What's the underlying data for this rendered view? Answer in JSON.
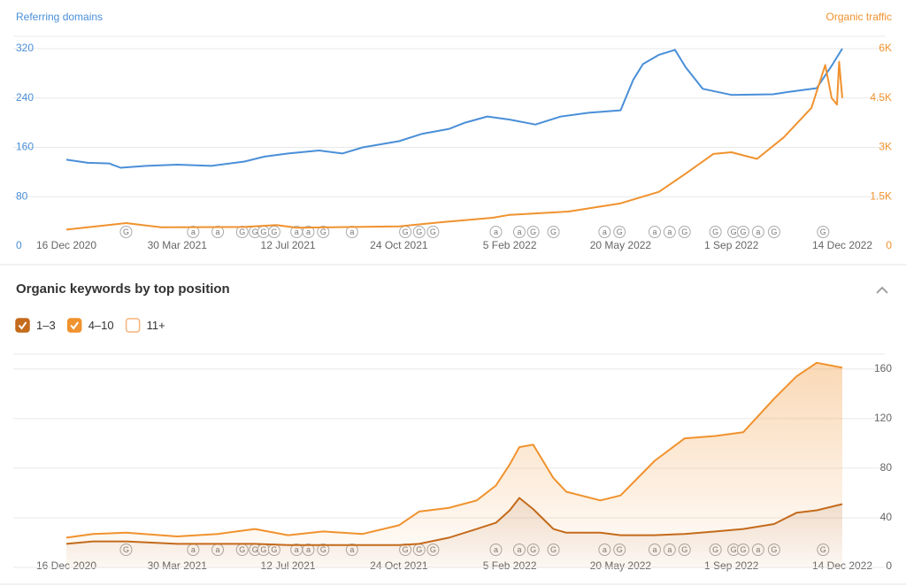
{
  "chart_data": [
    {
      "type": "line",
      "y_label": "Referring domains",
      "y2_label": "Organic traffic",
      "xlim": [
        "2020-12-16",
        "2022-12-14"
      ],
      "xticks": [
        {
          "value": "2020-12-16",
          "label": "16 Dec 2020"
        },
        {
          "value": "2021-03-30",
          "label": "30 Mar 2021"
        },
        {
          "value": "2021-07-12",
          "label": "12 Jul 2021"
        },
        {
          "value": "2021-10-24",
          "label": "24 Oct 2021"
        },
        {
          "value": "2022-02-05",
          "label": "5 Feb 2022"
        },
        {
          "value": "2022-05-20",
          "label": "20 May 2022"
        },
        {
          "value": "2022-09-01",
          "label": "1 Sep 2022"
        },
        {
          "value": "2022-12-14",
          "label": "14 Dec 2022"
        }
      ],
      "ylim": [
        0,
        340
      ],
      "yticks": [
        0,
        80,
        160,
        240,
        320
      ],
      "y2lim": [
        0,
        6375
      ],
      "y2ticks": [
        0,
        {
          "value": 1500,
          "label": "1.5K"
        },
        {
          "value": 3000,
          "label": "3K"
        },
        {
          "value": 4500,
          "label": "4.5K"
        },
        {
          "value": 6000,
          "label": "6K"
        }
      ],
      "grid": true,
      "series": [
        {
          "color": "#4a8fd8",
          "x": [
            "2020-12-16",
            "2021-01-05",
            "2021-01-25",
            "2021-02-05",
            "2021-03-01",
            "2021-03-30",
            "2021-05-01",
            "2021-06-01",
            "2021-06-20",
            "2021-07-12",
            "2021-08-10",
            "2021-09-01",
            "2021-09-20",
            "2021-10-24",
            "2021-11-15",
            "2021-12-10",
            "2021-12-25",
            "2022-01-15",
            "2022-02-05",
            "2022-03-01",
            "2022-03-25",
            "2022-04-20",
            "2022-05-20",
            "2022-06-01",
            "2022-06-10",
            "2022-06-25",
            "2022-07-10",
            "2022-07-20",
            "2022-08-05",
            "2022-09-01",
            "2022-10-10",
            "2022-10-25",
            "2022-11-20",
            "2022-12-05",
            "2022-12-14"
          ],
          "values": [
            140,
            135,
            134,
            127,
            130,
            132,
            130,
            137,
            145,
            150,
            155,
            150,
            160,
            170,
            182,
            190,
            200,
            210,
            205,
            197,
            210,
            216,
            220,
            270,
            295,
            310,
            318,
            290,
            255,
            245,
            246,
            250,
            256,
            295,
            320
          ]
        },
        {
          "color": "#f0922e",
          "axis": "y2",
          "x": [
            "2020-12-16",
            "2021-02-10",
            "2021-03-15",
            "2021-06-01",
            "2021-07-01",
            "2021-07-20",
            "2021-10-24",
            "2021-12-01",
            "2022-01-20",
            "2022-02-05",
            "2022-04-01",
            "2022-05-20",
            "2022-06-25",
            "2022-07-20",
            "2022-08-15",
            "2022-09-01",
            "2022-09-25",
            "2022-10-20",
            "2022-11-15",
            "2022-11-28",
            "2022-12-04",
            "2022-12-09",
            "2022-12-11",
            "2022-12-14"
          ],
          "values": [
            500,
            700,
            570,
            580,
            640,
            560,
            600,
            720,
            860,
            950,
            1050,
            1300,
            1650,
            2200,
            2800,
            2850,
            2650,
            3300,
            4200,
            5500,
            4500,
            4300,
            5600,
            4500
          ]
        }
      ]
    },
    {
      "type": "stacked-area",
      "title": "Organic keywords by top position",
      "legend": "top-left",
      "x": [
        "2020-12-16",
        "2021-01-10",
        "2021-02-10",
        "2021-03-30",
        "2021-05-07",
        "2021-06-11",
        "2021-07-12",
        "2021-08-14",
        "2021-09-20",
        "2021-10-24",
        "2021-11-12",
        "2021-12-10",
        "2022-01-05",
        "2022-01-23",
        "2022-02-05",
        "2022-02-14",
        "2022-02-27",
        "2022-03-18",
        "2022-03-30",
        "2022-05-01",
        "2022-05-20",
        "2022-06-21",
        "2022-07-19",
        "2022-08-17",
        "2022-09-12",
        "2022-10-11",
        "2022-11-01",
        "2022-11-20",
        "2022-12-14"
      ],
      "xlim": [
        "2020-12-16",
        "2022-12-14"
      ],
      "xticks": [
        {
          "value": "2020-12-16",
          "label": "16 Dec 2020"
        },
        {
          "value": "2021-03-30",
          "label": "30 Mar 2021"
        },
        {
          "value": "2021-07-12",
          "label": "12 Jul 2021"
        },
        {
          "value": "2021-10-24",
          "label": "24 Oct 2021"
        },
        {
          "value": "2022-02-05",
          "label": "5 Feb 2022"
        },
        {
          "value": "2022-05-20",
          "label": "20 May 2022"
        },
        {
          "value": "2022-09-01",
          "label": "1 Sep 2022"
        },
        {
          "value": "2022-12-14",
          "label": "14 Dec 2022"
        }
      ],
      "ylim": [
        0,
        172
      ],
      "yticks": [
        0,
        40,
        80,
        120,
        160
      ],
      "grid": true,
      "series": [
        {
          "name": "1–3",
          "color": "#c46b1c",
          "checked": true,
          "values": [
            19,
            21,
            21,
            19,
            19,
            19,
            18,
            18,
            18,
            18,
            19,
            24,
            31,
            36,
            46,
            56,
            47,
            31,
            28,
            28,
            26,
            26,
            27,
            29,
            31,
            35,
            44,
            46,
            51
          ]
        },
        {
          "name": "4–10",
          "color": "#f0922e",
          "checked": true,
          "values": [
            5,
            6,
            7,
            6,
            8,
            12,
            8,
            11,
            9,
            16,
            26,
            24,
            23,
            30,
            37,
            41,
            52,
            41,
            33,
            26,
            32,
            60,
            77,
            77,
            78,
            101,
            110,
            119,
            110
          ]
        },
        {
          "name": "11+",
          "color": "#f6b47c",
          "checked": false
        }
      ]
    }
  ],
  "events": [
    {
      "x": "2021-02-10",
      "label": "G"
    },
    {
      "x": "2021-04-14",
      "label": "a"
    },
    {
      "x": "2021-05-07",
      "label": "a"
    },
    {
      "x": "2021-05-30",
      "label": "G"
    },
    {
      "x": "2021-06-11",
      "label": "G"
    },
    {
      "x": "2021-06-19",
      "label": "G"
    },
    {
      "x": "2021-06-29",
      "label": "G"
    },
    {
      "x": "2021-07-20",
      "label": "a"
    },
    {
      "x": "2021-07-31",
      "label": "a"
    },
    {
      "x": "2021-08-14",
      "label": "G"
    },
    {
      "x": "2021-09-10",
      "label": "a"
    },
    {
      "x": "2021-10-30",
      "label": "G"
    },
    {
      "x": "2021-11-12",
      "label": "G"
    },
    {
      "x": "2021-11-25",
      "label": "G"
    },
    {
      "x": "2022-01-23",
      "label": "a"
    },
    {
      "x": "2022-02-14",
      "label": "a"
    },
    {
      "x": "2022-02-27",
      "label": "G"
    },
    {
      "x": "2022-03-18",
      "label": "G"
    },
    {
      "x": "2022-05-05",
      "label": "a"
    },
    {
      "x": "2022-05-19",
      "label": "G"
    },
    {
      "x": "2022-06-21",
      "label": "a"
    },
    {
      "x": "2022-07-05",
      "label": "a"
    },
    {
      "x": "2022-07-19",
      "label": "G"
    },
    {
      "x": "2022-08-17",
      "label": "G"
    },
    {
      "x": "2022-09-03",
      "label": "G"
    },
    {
      "x": "2022-09-12",
      "label": "G"
    },
    {
      "x": "2022-09-26",
      "label": "a"
    },
    {
      "x": "2022-10-11",
      "label": "G"
    },
    {
      "x": "2022-11-26",
      "label": "G"
    }
  ]
}
